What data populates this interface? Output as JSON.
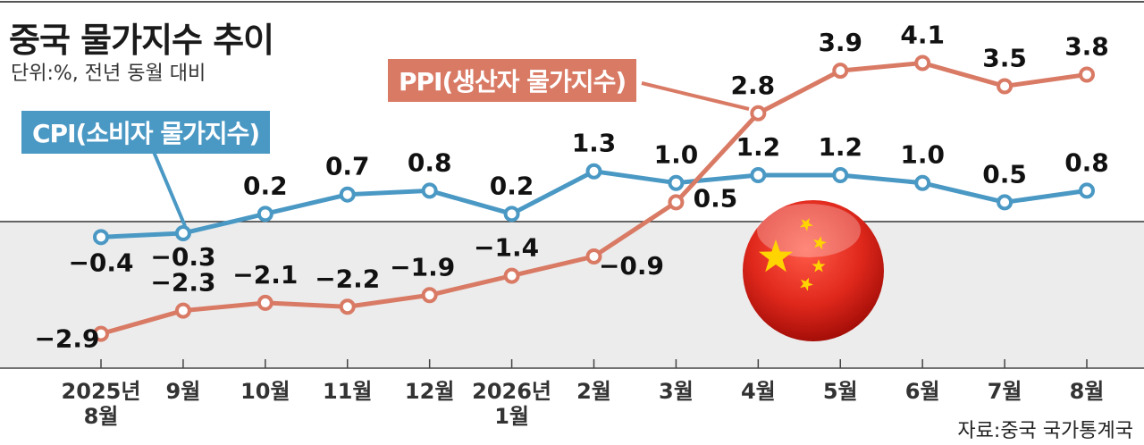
{
  "title": "중국 물가지수 추이",
  "subtitle": "단위:%, 전년 동월 대비",
  "source": "자료:중국 국가통계국",
  "colors": {
    "cpi": "#4a98c4",
    "ppi": "#d97a65",
    "negative_bg": "#ececec",
    "flag": "#e0281c",
    "star": "#ffd400"
  },
  "chart_data": {
    "type": "line",
    "categories": [
      [
        "2025년",
        "8월"
      ],
      [
        "9월"
      ],
      [
        "10월"
      ],
      [
        "11월"
      ],
      [
        "12월"
      ],
      [
        "2026년",
        "1월"
      ],
      [
        "2월"
      ],
      [
        "3월"
      ],
      [
        "4월"
      ],
      [
        "5월"
      ],
      [
        "6월"
      ],
      [
        "7월"
      ],
      [
        "8월"
      ]
    ],
    "series": [
      {
        "name": "CPI(소비자 물가지수)",
        "values": [
          -0.4,
          -0.3,
          0.2,
          0.7,
          0.8,
          0.2,
          1.3,
          1.0,
          1.2,
          1.2,
          1.0,
          0.5,
          0.8
        ],
        "labels": [
          "−0.4",
          "−0.3",
          "0.2",
          "0.7",
          "0.8",
          "0.2",
          "1.3",
          "1.0",
          "1.2",
          "1.2",
          "1.0",
          "0.5",
          "0.8"
        ]
      },
      {
        "name": "PPI(생산자 물가지수)",
        "values": [
          -2.9,
          -2.3,
          -2.1,
          -2.2,
          -1.9,
          -1.4,
          -0.9,
          0.5,
          2.8,
          3.9,
          4.1,
          3.5,
          3.8
        ],
        "labels": [
          "−2.9",
          "−2.3",
          "−2.1",
          "−2.2",
          "−1.9",
          "−1.4",
          "−0.9",
          "0.5",
          "2.8",
          "3.9",
          "4.1",
          "3.5",
          "3.8"
        ]
      }
    ],
    "baseline": 0,
    "grid": false,
    "legend": "inline labels"
  }
}
